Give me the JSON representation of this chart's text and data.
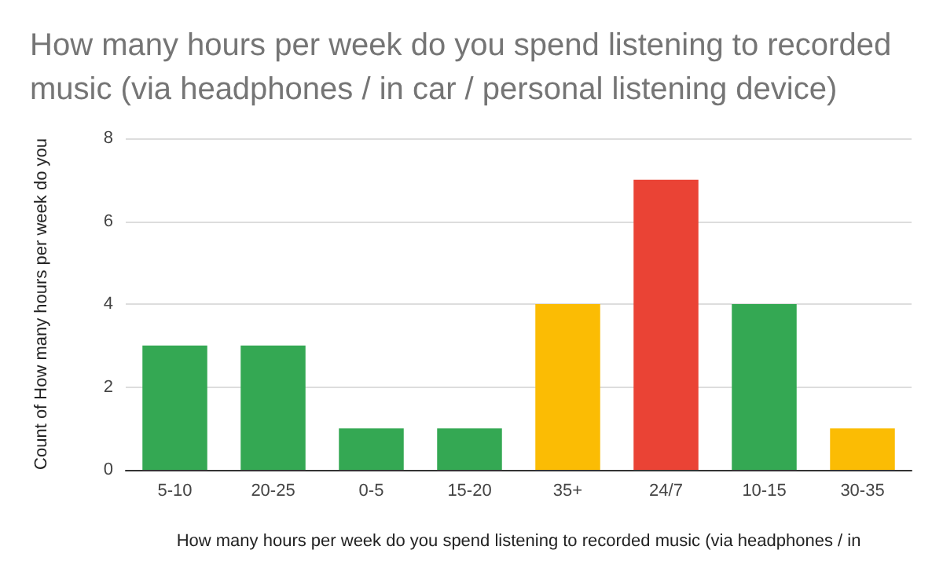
{
  "chart_data": {
    "type": "bar",
    "title": "How many hours per week do you spend listening to recorded\nmusic (via headphones / in car / personal listening device)",
    "xlabel": "How many hours per week do you spend listening to recorded music (via headphones / in",
    "ylabel": "Count of How many hours per week do you",
    "categories": [
      "5-10",
      "20-25",
      "0-5",
      "15-20",
      "35+",
      "24/7",
      "10-15",
      "30-35"
    ],
    "values": [
      3,
      3,
      1,
      1,
      4,
      7,
      4,
      1
    ],
    "colors": [
      "#34a853",
      "#34a853",
      "#34a853",
      "#34a853",
      "#fbbc04",
      "#ea4335",
      "#34a853",
      "#fbbc04"
    ],
    "ylim": [
      0,
      8
    ],
    "yticks": [
      0,
      2,
      4,
      6,
      8
    ],
    "grid": "y"
  }
}
